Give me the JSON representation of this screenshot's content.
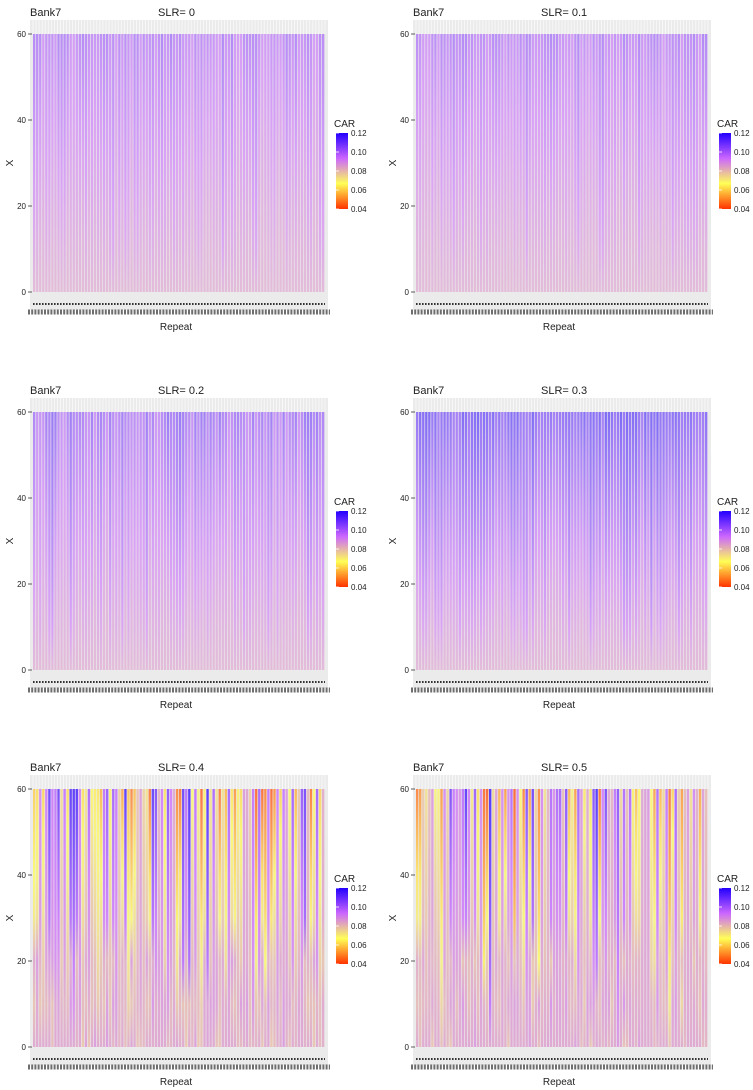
{
  "chart_data": [
    {
      "type": "heatmap",
      "bank_label": "Bank7",
      "slr_label": "SLR= 0",
      "xlabel": "Repeat",
      "ylabel": "X",
      "yticks": [
        "0",
        "20",
        "40",
        "60"
      ],
      "ylim": [
        0,
        60
      ],
      "legend": {
        "title": "CAR",
        "ticks": [
          "0.12",
          "0.10",
          "0.08",
          "0.06",
          "0.04"
        ],
        "range": [
          0.04,
          0.12
        ]
      },
      "color_scale": [
        "#ff3300",
        "#ffff55",
        "#cc66ff",
        "#2200ff"
      ],
      "pattern": {
        "x_max": [
          0.095,
          0.105
        ]
      }
    },
    {
      "type": "heatmap",
      "bank_label": "Bank7",
      "slr_label": "SLR= 0.1",
      "xlabel": "Repeat",
      "ylabel": "X",
      "yticks": [
        "0",
        "20",
        "40",
        "60"
      ],
      "ylim": [
        0,
        60
      ],
      "legend": {
        "title": "CAR",
        "ticks": [
          "0.12",
          "0.10",
          "0.08",
          "0.06",
          "0.04"
        ],
        "range": [
          0.04,
          0.12
        ]
      },
      "color_scale": [
        "#ff3300",
        "#ffff55",
        "#cc66ff",
        "#2200ff"
      ],
      "pattern": {
        "x_max": [
          0.095,
          0.105
        ]
      }
    },
    {
      "type": "heatmap",
      "bank_label": "Bank7",
      "slr_label": "SLR= 0.2",
      "xlabel": "Repeat",
      "ylabel": "X",
      "yticks": [
        "0",
        "20",
        "40",
        "60"
      ],
      "ylim": [
        0,
        60
      ],
      "legend": {
        "title": "CAR",
        "ticks": [
          "0.12",
          "0.10",
          "0.08",
          "0.06",
          "0.04"
        ],
        "range": [
          0.04,
          0.12
        ]
      },
      "color_scale": [
        "#ff3300",
        "#ffff55",
        "#cc66ff",
        "#2200ff"
      ],
      "pattern": {
        "x_max": [
          0.097,
          0.112
        ]
      }
    },
    {
      "type": "heatmap",
      "bank_label": "Bank7",
      "slr_label": "SLR= 0.3",
      "xlabel": "Repeat",
      "ylabel": "X",
      "yticks": [
        "0",
        "20",
        "40",
        "60"
      ],
      "ylim": [
        0,
        60
      ],
      "legend": {
        "title": "CAR",
        "ticks": [
          "0.12",
          "0.10",
          "0.08",
          "0.06",
          "0.04"
        ],
        "range": [
          0.04,
          0.12
        ]
      },
      "color_scale": [
        "#ff3300",
        "#ffff55",
        "#cc66ff",
        "#2200ff"
      ],
      "pattern": {
        "x_max": [
          0.108,
          0.12
        ]
      }
    },
    {
      "type": "heatmap",
      "bank_label": "Bank7",
      "slr_label": "SLR= 0.4",
      "xlabel": "Repeat",
      "ylabel": "X",
      "yticks": [
        "0",
        "20",
        "40",
        "60"
      ],
      "ylim": [
        0,
        60
      ],
      "legend": {
        "title": "CAR",
        "ticks": [
          "0.12",
          "0.10",
          "0.08",
          "0.06",
          "0.04"
        ],
        "range": [
          0.04,
          0.12
        ]
      },
      "color_scale": [
        "#ff3300",
        "#ffff55",
        "#cc66ff",
        "#2200ff"
      ],
      "pattern": {
        "x_max": [
          0.04,
          0.12
        ]
      }
    },
    {
      "type": "heatmap",
      "bank_label": "Bank7",
      "slr_label": "SLR= 0.5",
      "xlabel": "Repeat",
      "ylabel": "X",
      "yticks": [
        "0",
        "20",
        "40",
        "60"
      ],
      "ylim": [
        0,
        60
      ],
      "legend": {
        "title": "CAR",
        "ticks": [
          "0.12",
          "0.10",
          "0.08",
          "0.06",
          "0.04"
        ],
        "range": [
          0.04,
          0.12
        ]
      },
      "color_scale": [
        "#ff3300",
        "#ffff55",
        "#cc66ff",
        "#2200ff"
      ],
      "pattern": {
        "x_max": [
          0.04,
          0.12
        ]
      }
    }
  ]
}
